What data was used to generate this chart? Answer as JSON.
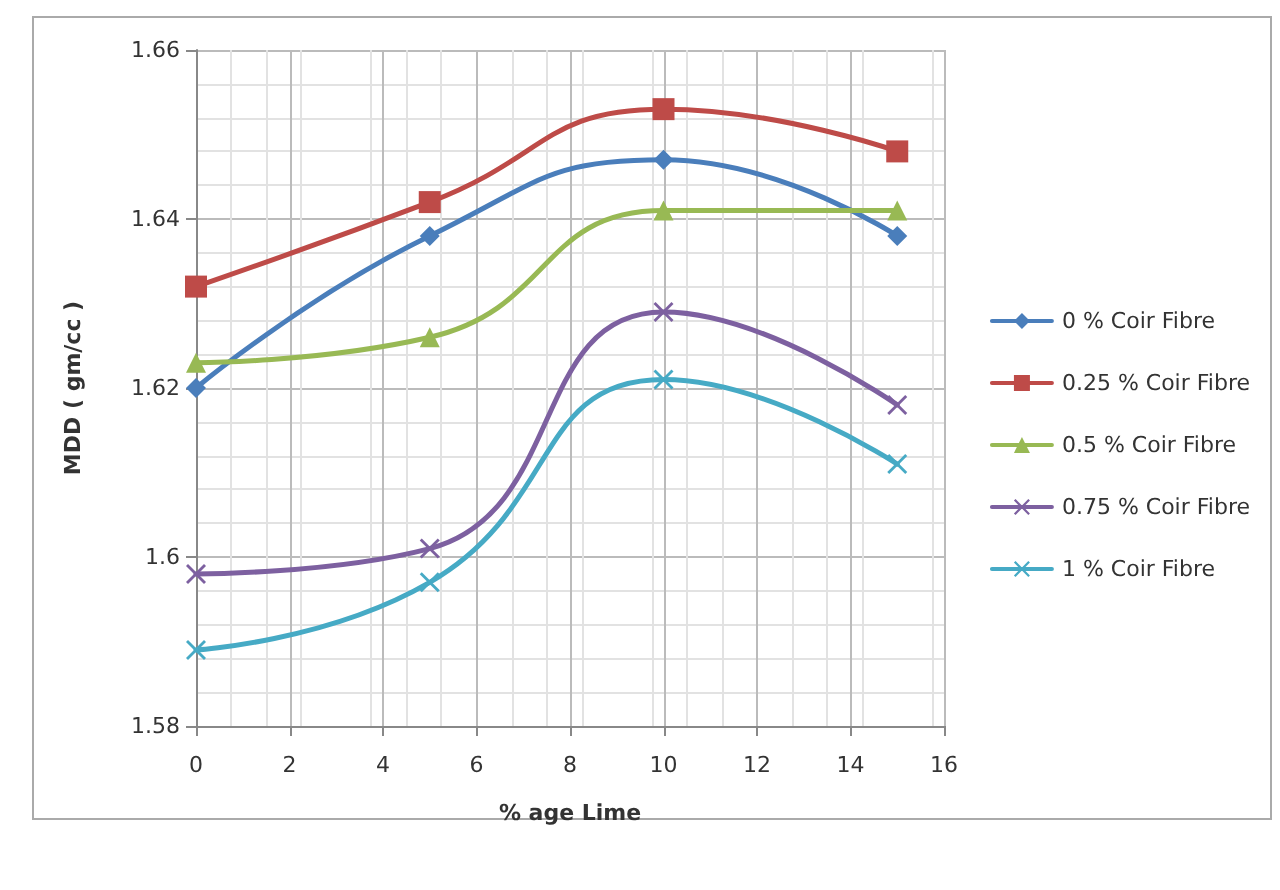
{
  "chart_data": {
    "type": "line",
    "xlabel": "% age Lime",
    "ylabel": "MDD ( gm/cc )",
    "x": [
      0,
      5,
      10,
      15
    ],
    "series": [
      {
        "name": "0 % Coir Fibre",
        "color": "#4a7ebb",
        "marker": "diamond",
        "values": [
          1.62,
          1.638,
          1.647,
          1.638
        ]
      },
      {
        "name": "0.25 % Coir Fibre",
        "color": "#be4b48",
        "marker": "square",
        "values": [
          1.632,
          1.642,
          1.653,
          1.648
        ]
      },
      {
        "name": "0.5 % Coir Fibre",
        "color": "#98b954",
        "marker": "triangle",
        "values": [
          1.623,
          1.626,
          1.641,
          1.641
        ]
      },
      {
        "name": "0.75 % Coir Fibre",
        "color": "#7d60a0",
        "marker": "cross",
        "values": [
          1.598,
          1.601,
          1.629,
          1.618
        ]
      },
      {
        "name": "1 % Coir Fibre",
        "color": "#46aac5",
        "marker": "cross",
        "values": [
          1.589,
          1.597,
          1.621,
          1.611
        ]
      }
    ],
    "xlim": [
      0,
      16
    ],
    "xticks": [
      0,
      2,
      4,
      6,
      8,
      10,
      12,
      14,
      16
    ],
    "ylim": [
      1.58,
      1.66
    ],
    "yticks": [
      1.58,
      1.6,
      1.62,
      1.64,
      1.66
    ],
    "grid": true,
    "legend": "right",
    "line_style": "solid"
  }
}
